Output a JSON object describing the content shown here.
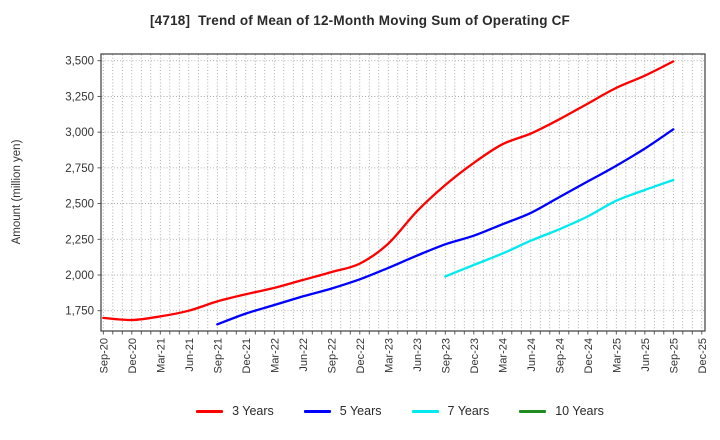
{
  "title": "[4718]  Trend of Mean of 12-Month Moving Sum of Operating CF",
  "y_axis_label": "Amount (million yen)",
  "legend": [
    {
      "label": "3 Years",
      "color": "#ff0000"
    },
    {
      "label": "5 Years",
      "color": "#0000ff"
    },
    {
      "label": "7 Years",
      "color": "#00eaf0"
    },
    {
      "label": "10 Years",
      "color": "#1e8c1e"
    }
  ],
  "chart_data": {
    "type": "line",
    "title": "[4718]  Trend of Mean of 12-Month Moving Sum of Operating CF",
    "xlabel": "",
    "ylabel": "Amount (million yen)",
    "categories": [
      "Sep-20",
      "Dec-20",
      "Mar-21",
      "Jun-21",
      "Sep-21",
      "Dec-21",
      "Mar-22",
      "Jun-22",
      "Sep-22",
      "Dec-22",
      "Mar-23",
      "Jun-23",
      "Sep-23",
      "Dec-23",
      "Mar-24",
      "Jun-24",
      "Sep-24",
      "Dec-24",
      "Mar-25",
      "Jun-25",
      "Sep-25",
      "Dec-25"
    ],
    "y_ticks": [
      1750,
      2000,
      2250,
      2500,
      2750,
      3000,
      3250,
      3500
    ],
    "ylim": [
      1608,
      3547
    ],
    "grid": "dotted, monthly vertical + 250-step horizontal",
    "legend_position": "bottom",
    "series": [
      {
        "name": "3 Years",
        "color": "#ff0000",
        "start_index": 0,
        "values": [
          1700,
          1685,
          1710,
          1750,
          1815,
          1865,
          1910,
          1965,
          2020,
          2080,
          2220,
          2445,
          2630,
          2785,
          2915,
          2990,
          3090,
          3200,
          3310,
          3395,
          3495
        ]
      },
      {
        "name": "5 Years",
        "color": "#0000ff",
        "start_index": 4,
        "values": [
          1655,
          1730,
          1790,
          1850,
          1905,
          1970,
          2050,
          2135,
          2215,
          2275,
          2355,
          2435,
          2545,
          2655,
          2765,
          2885,
          3020
        ]
      },
      {
        "name": "7 Years",
        "color": "#00eaf0",
        "start_index": 12,
        "values": [
          1990,
          2070,
          2150,
          2240,
          2320,
          2410,
          2520,
          2595,
          2665
        ]
      },
      {
        "name": "10 Years",
        "color": "#1e8c1e",
        "start_index": null,
        "values": []
      }
    ]
  }
}
